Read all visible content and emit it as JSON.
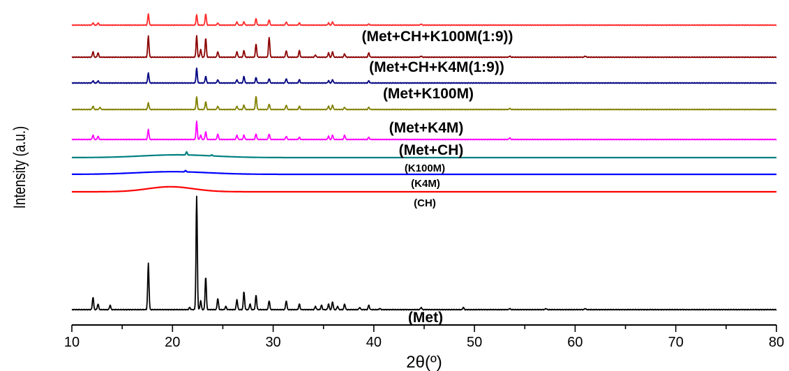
{
  "chart_data": {
    "type": "line",
    "xlabel": "2θ(º)",
    "ylabel": "Intensity (a.u.)",
    "xlim": [
      10,
      80
    ],
    "xticks": [
      10,
      20,
      30,
      40,
      50,
      60,
      70,
      80
    ],
    "grid": false,
    "series": [
      {
        "name": "(Met)",
        "label": "(Met)",
        "color": "#000000",
        "kind": "crystalline",
        "peaks": [
          {
            "x": 12.1,
            "h": 0.11
          },
          {
            "x": 12.6,
            "h": 0.05
          },
          {
            "x": 13.8,
            "h": 0.04
          },
          {
            "x": 17.6,
            "h": 0.41
          },
          {
            "x": 21.7,
            "h": 0.02
          },
          {
            "x": 22.4,
            "h": 1.0
          },
          {
            "x": 22.8,
            "h": 0.08
          },
          {
            "x": 23.3,
            "h": 0.29
          },
          {
            "x": 24.5,
            "h": 0.1
          },
          {
            "x": 25.3,
            "h": 0.03
          },
          {
            "x": 26.4,
            "h": 0.09
          },
          {
            "x": 27.1,
            "h": 0.16
          },
          {
            "x": 27.7,
            "h": 0.05
          },
          {
            "x": 28.3,
            "h": 0.13
          },
          {
            "x": 29.6,
            "h": 0.08
          },
          {
            "x": 31.3,
            "h": 0.08
          },
          {
            "x": 32.6,
            "h": 0.05
          },
          {
            "x": 34.2,
            "h": 0.03
          },
          {
            "x": 34.8,
            "h": 0.04
          },
          {
            "x": 35.5,
            "h": 0.05
          },
          {
            "x": 35.9,
            "h": 0.07
          },
          {
            "x": 36.4,
            "h": 0.03
          },
          {
            "x": 37.1,
            "h": 0.05
          },
          {
            "x": 38.6,
            "h": 0.02
          },
          {
            "x": 39.5,
            "h": 0.04
          },
          {
            "x": 40.6,
            "h": 0.01
          },
          {
            "x": 44.7,
            "h": 0.02
          },
          {
            "x": 48.9,
            "h": 0.02
          },
          {
            "x": 53.5,
            "h": 0.01
          },
          {
            "x": 57.1,
            "h": 0.01
          },
          {
            "x": 61.0,
            "h": 0.01
          }
        ]
      },
      {
        "name": "(CH)",
        "label": "(CH)",
        "color": "#ff0000",
        "kind": "amorphous",
        "hump": {
          "x": 19.8,
          "h": 0.018,
          "w": 3.2
        }
      },
      {
        "name": "(K4M)",
        "label": "(K4M)",
        "color": "#0000ff",
        "kind": "amorphous",
        "hump": {
          "x": 20.0,
          "h": 0.02,
          "w": 5.0
        },
        "peaks": [
          {
            "x": 21.3,
            "h": 0.01
          }
        ]
      },
      {
        "name": "(K100M)",
        "label": "(K100M)",
        "color": "#008080",
        "kind": "amorphous",
        "hump": {
          "x": 20.5,
          "h": 0.022,
          "w": 5.0
        },
        "peaks": [
          {
            "x": 21.4,
            "h": 0.025
          },
          {
            "x": 23.9,
            "h": 0.008
          }
        ]
      },
      {
        "name": "(Met+CH)",
        "label": "(Met+CH)",
        "color": "#ff00ff",
        "kind": "crystalline",
        "peaks": [
          {
            "x": 12.1,
            "h": 0.04
          },
          {
            "x": 12.6,
            "h": 0.03
          },
          {
            "x": 17.6,
            "h": 0.09
          },
          {
            "x": 22.4,
            "h": 0.16
          },
          {
            "x": 22.8,
            "h": 0.04
          },
          {
            "x": 23.3,
            "h": 0.07
          },
          {
            "x": 24.5,
            "h": 0.05
          },
          {
            "x": 26.4,
            "h": 0.04
          },
          {
            "x": 27.1,
            "h": 0.04
          },
          {
            "x": 28.3,
            "h": 0.05
          },
          {
            "x": 29.6,
            "h": 0.05
          },
          {
            "x": 31.3,
            "h": 0.03
          },
          {
            "x": 32.6,
            "h": 0.02
          },
          {
            "x": 35.5,
            "h": 0.03
          },
          {
            "x": 35.9,
            "h": 0.04
          },
          {
            "x": 37.1,
            "h": 0.04
          },
          {
            "x": 39.5,
            "h": 0.02
          },
          {
            "x": 53.5,
            "h": 0.015
          }
        ]
      },
      {
        "name": "(Met+K4M)",
        "label": "(Met+K4M)",
        "color": "#808000",
        "kind": "crystalline",
        "peaks": [
          {
            "x": 12.1,
            "h": 0.03
          },
          {
            "x": 12.8,
            "h": 0.02
          },
          {
            "x": 17.6,
            "h": 0.06
          },
          {
            "x": 22.4,
            "h": 0.11
          },
          {
            "x": 23.3,
            "h": 0.07
          },
          {
            "x": 24.5,
            "h": 0.03
          },
          {
            "x": 26.4,
            "h": 0.03
          },
          {
            "x": 27.1,
            "h": 0.04
          },
          {
            "x": 28.3,
            "h": 0.12
          },
          {
            "x": 29.6,
            "h": 0.05
          },
          {
            "x": 31.3,
            "h": 0.04
          },
          {
            "x": 32.6,
            "h": 0.03
          },
          {
            "x": 35.5,
            "h": 0.03
          },
          {
            "x": 35.9,
            "h": 0.04
          },
          {
            "x": 37.1,
            "h": 0.02
          },
          {
            "x": 39.5,
            "h": 0.02
          },
          {
            "x": 53.5,
            "h": 0.01
          }
        ]
      },
      {
        "name": "(Met+K100M)",
        "label": "(Met+K100M)",
        "color": "#000080",
        "kind": "crystalline",
        "peaks": [
          {
            "x": 12.1,
            "h": 0.02
          },
          {
            "x": 12.6,
            "h": 0.02
          },
          {
            "x": 17.6,
            "h": 0.09
          },
          {
            "x": 22.4,
            "h": 0.13
          },
          {
            "x": 23.3,
            "h": 0.06
          },
          {
            "x": 24.5,
            "h": 0.03
          },
          {
            "x": 26.4,
            "h": 0.03
          },
          {
            "x": 27.1,
            "h": 0.06
          },
          {
            "x": 28.3,
            "h": 0.05
          },
          {
            "x": 29.6,
            "h": 0.04
          },
          {
            "x": 31.3,
            "h": 0.04
          },
          {
            "x": 32.6,
            "h": 0.03
          },
          {
            "x": 35.5,
            "h": 0.02
          },
          {
            "x": 35.9,
            "h": 0.03
          },
          {
            "x": 39.5,
            "h": 0.02
          }
        ]
      },
      {
        "name": "(Met+CH+K4M(1:9))",
        "label": "(Met+CH+K4M(1:9))",
        "color": "#8b0000",
        "kind": "crystalline",
        "peaks": [
          {
            "x": 12.1,
            "h": 0.05
          },
          {
            "x": 12.6,
            "h": 0.04
          },
          {
            "x": 17.6,
            "h": 0.19
          },
          {
            "x": 22.4,
            "h": 0.19
          },
          {
            "x": 22.8,
            "h": 0.07
          },
          {
            "x": 23.3,
            "h": 0.17
          },
          {
            "x": 24.5,
            "h": 0.05
          },
          {
            "x": 26.4,
            "h": 0.05
          },
          {
            "x": 27.1,
            "h": 0.06
          },
          {
            "x": 28.3,
            "h": 0.12
          },
          {
            "x": 29.6,
            "h": 0.18
          },
          {
            "x": 31.3,
            "h": 0.06
          },
          {
            "x": 32.6,
            "h": 0.06
          },
          {
            "x": 34.2,
            "h": 0.02
          },
          {
            "x": 35.5,
            "h": 0.04
          },
          {
            "x": 35.9,
            "h": 0.05
          },
          {
            "x": 37.1,
            "h": 0.03
          },
          {
            "x": 39.5,
            "h": 0.04
          },
          {
            "x": 44.7,
            "h": 0.01
          },
          {
            "x": 53.5,
            "h": 0.01
          },
          {
            "x": 61.0,
            "h": 0.01
          }
        ]
      },
      {
        "name": "(Met+CH+K100M(1:9))",
        "label": "(Met+CH+K100M(1:9))",
        "color": "#ff2a2a",
        "kind": "crystalline",
        "peaks": [
          {
            "x": 12.1,
            "h": 0.02
          },
          {
            "x": 12.6,
            "h": 0.02
          },
          {
            "x": 17.6,
            "h": 0.1
          },
          {
            "x": 22.4,
            "h": 0.09
          },
          {
            "x": 23.3,
            "h": 0.1
          },
          {
            "x": 24.5,
            "h": 0.02
          },
          {
            "x": 26.4,
            "h": 0.03
          },
          {
            "x": 27.1,
            "h": 0.03
          },
          {
            "x": 28.3,
            "h": 0.06
          },
          {
            "x": 29.6,
            "h": 0.05
          },
          {
            "x": 31.3,
            "h": 0.03
          },
          {
            "x": 32.6,
            "h": 0.02
          },
          {
            "x": 35.5,
            "h": 0.02
          },
          {
            "x": 35.9,
            "h": 0.03
          },
          {
            "x": 39.5,
            "h": 0.01
          },
          {
            "x": 44.7,
            "h": 0.01
          }
        ]
      }
    ]
  }
}
